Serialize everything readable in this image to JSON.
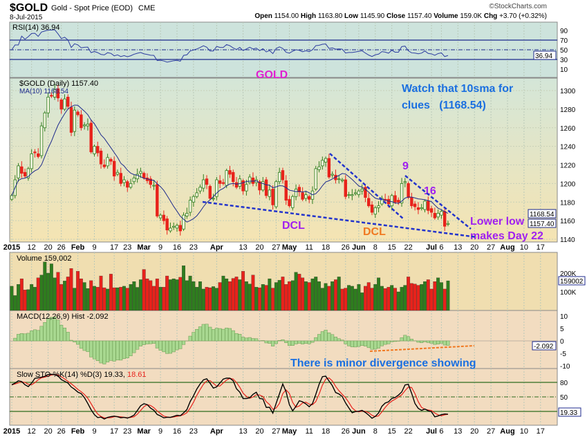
{
  "header": {
    "symbol": "$GOLD",
    "name": "Gold - Spot Price (EOD)",
    "exchange": "CME",
    "date": "8-Jul-2015",
    "brand": "©StockCharts.com",
    "ohlc": [
      {
        "k": "Open",
        "v": "1154.00"
      },
      {
        "k": "High",
        "v": "1163.80"
      },
      {
        "k": "Low",
        "v": "1145.90"
      },
      {
        "k": "Close",
        "v": "1157.40"
      },
      {
        "k": "Volume",
        "v": "159.0K"
      },
      {
        "k": "Chg",
        "v": "+3.70 (+0.32%)"
      }
    ]
  },
  "colors": {
    "up": "#2e7d1e",
    "down": "#e8221b",
    "ma": "#1d2a8c",
    "trend": "#2233cc",
    "annot_purple": "#a020f0",
    "annot_blue": "#1a6fe0",
    "annot_orange": "#f07820"
  },
  "chart_data": [
    {
      "type": "line",
      "panel": "rsi",
      "label": "RSI(14) 36.94",
      "last": "36.94",
      "yticks": [
        "90",
        "70",
        "50",
        "30",
        "10"
      ],
      "ylim": [
        0,
        100
      ]
    },
    {
      "type": "candlestick",
      "panel": "price",
      "label": "$GOLD (Daily) 1157.40",
      "ma_label": "MA(10) 1168.54",
      "ma_last": "1168.54",
      "last": "1157.40",
      "yticks": [
        "1300",
        "1280",
        "1260",
        "1240",
        "1220",
        "1200",
        "1180",
        "1160",
        "1140"
      ],
      "ylim": [
        1136,
        1310
      ],
      "close": [
        1187,
        1204,
        1219,
        1211,
        1208,
        1216,
        1232,
        1233,
        1229,
        1262,
        1276,
        1293,
        1294,
        1301,
        1292,
        1280,
        1291,
        1283,
        1255,
        1279,
        1274,
        1260,
        1263,
        1264,
        1234,
        1240,
        1233,
        1221,
        1218,
        1228,
        1224,
        1208,
        1212,
        1200,
        1204,
        1196,
        1200,
        1206,
        1210,
        1213,
        1206,
        1203,
        1199,
        1198,
        1165,
        1166,
        1160,
        1150,
        1152,
        1154,
        1155,
        1149,
        1166,
        1168,
        1182,
        1186,
        1190,
        1196,
        1204,
        1199,
        1184,
        1184,
        1204,
        1200,
        1200,
        1214,
        1210,
        1202,
        1196,
        1205,
        1192,
        1199,
        1207,
        1200,
        1204,
        1193,
        1202,
        1187,
        1193,
        1177,
        1202,
        1212,
        1204,
        1182,
        1176,
        1186,
        1194,
        1191,
        1183,
        1188,
        1183,
        1192,
        1216,
        1218,
        1225,
        1227,
        1207,
        1210,
        1204,
        1205,
        1204,
        1186,
        1188,
        1188,
        1190,
        1192,
        1194,
        1185,
        1176,
        1169,
        1174,
        1176,
        1184,
        1182,
        1178,
        1187,
        1180,
        1180,
        1200,
        1202,
        1185,
        1176,
        1175,
        1172,
        1174,
        1181,
        1171,
        1169,
        1163,
        1168,
        1170,
        1154,
        1157
      ]
    },
    {
      "type": "bar",
      "panel": "volume",
      "label": "Volume 159,002",
      "last": "159002",
      "yticks": [
        "200K",
        "100K"
      ],
      "values_k": [
        130,
        80,
        140,
        170,
        110,
        112,
        140,
        125,
        175,
        190,
        260,
        200,
        250,
        175,
        205,
        140,
        158,
        180,
        225,
        120,
        210,
        170,
        150,
        118,
        160,
        130,
        125,
        185,
        122,
        115,
        195,
        122,
        122,
        125,
        130,
        120,
        140,
        155,
        124,
        165,
        220,
        170,
        160,
        130,
        170,
        125,
        125,
        185,
        165,
        170,
        165,
        178,
        240,
        160,
        185,
        155,
        125,
        155,
        115,
        125,
        122,
        128,
        120,
        150,
        185,
        170,
        155,
        172,
        180,
        165,
        210,
        155,
        142,
        190,
        125,
        122,
        140,
        135,
        170,
        120,
        150,
        162,
        180,
        140,
        155,
        160,
        205,
        195,
        175,
        155,
        150,
        170,
        180,
        155,
        120,
        145,
        130,
        155,
        165,
        180,
        115,
        120,
        135,
        130,
        115,
        140,
        95,
        130,
        150,
        120,
        140,
        175,
        130,
        118,
        125,
        135,
        120,
        100,
        125,
        135,
        180,
        145,
        142,
        135,
        140,
        155,
        165,
        115,
        155,
        175,
        150,
        115,
        159
      ]
    },
    {
      "type": "bar",
      "panel": "macd",
      "label": "MACD(12,26,9) Hist -2.092",
      "last": "-2.092",
      "yticks": [
        "10",
        "5",
        "0",
        "-5",
        "-10"
      ],
      "ylim": [
        -12,
        12
      ]
    },
    {
      "type": "line",
      "panel": "sto",
      "label_k": "Slow STO %K(14) %D(3) 19.33,",
      "label_d": "18.61",
      "last": "19.33",
      "yticks": [
        "80",
        "50"
      ],
      "ylim": [
        0,
        100
      ]
    }
  ],
  "xaxis": [
    {
      "t": "2015",
      "i": 0,
      "b": 1
    },
    {
      "t": "12",
      "i": 6
    },
    {
      "t": "20",
      "i": 11
    },
    {
      "t": "26",
      "i": 15
    },
    {
      "t": "Feb",
      "i": 20,
      "b": 1
    },
    {
      "t": "9",
      "i": 25
    },
    {
      "t": "17",
      "i": 31
    },
    {
      "t": "23",
      "i": 35
    },
    {
      "t": "Mar",
      "i": 40,
      "b": 1
    },
    {
      "t": "9",
      "i": 45
    },
    {
      "t": "16",
      "i": 50
    },
    {
      "t": "23",
      "i": 55
    },
    {
      "t": "Apr",
      "i": 62,
      "b": 1
    },
    {
      "t": "13",
      "i": 70
    },
    {
      "t": "20",
      "i": 75
    },
    {
      "t": "27",
      "i": 80
    },
    {
      "t": "May",
      "i": 84,
      "b": 1
    },
    {
      "t": "11",
      "i": 90
    },
    {
      "t": "18",
      "i": 95
    },
    {
      "t": "26",
      "i": 101
    },
    {
      "t": "Jun",
      "i": 105,
      "b": 1
    },
    {
      "t": "8",
      "i": 110
    },
    {
      "t": "15",
      "i": 115
    },
    {
      "t": "22",
      "i": 120
    },
    {
      "t": "Jul",
      "i": 127,
      "b": 1
    },
    {
      "t": "6",
      "i": 130
    },
    {
      "t": "13",
      "i": 135
    },
    {
      "t": "20",
      "i": 140
    },
    {
      "t": "27",
      "i": 145
    },
    {
      "t": "Aug",
      "i": 150,
      "b": 1
    },
    {
      "t": "10",
      "i": 155
    },
    {
      "t": "17",
      "i": 160
    }
  ],
  "annotations": {
    "gold": "GOLD",
    "watch1": "Watch that 10sma for",
    "watch2": "clues   (1168.54)",
    "dcl1": "DCL",
    "dcl2": "DCL",
    "nine": "9",
    "sixteen": "16",
    "lower1": "Lower low",
    "lower2": "makes Day 22",
    "divergence": "There is minor divergence showing"
  }
}
